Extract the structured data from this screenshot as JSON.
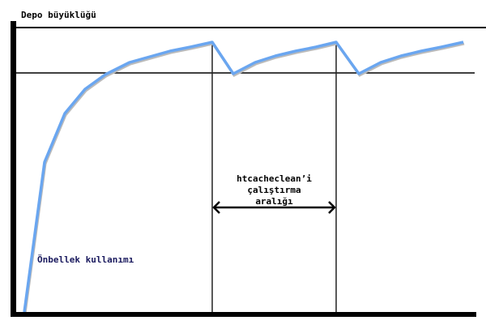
{
  "diagram": {
    "y_axis_label": "Depo büyüklüğü",
    "interval_label": [
      "htcacheclean’i",
      "çalıştırma",
      "aralığı"
    ],
    "curve_label": "Önbellek kullanımı",
    "colors": {
      "curve": "#6aa6f0",
      "axes": "#000000",
      "curve_label": "#1a1a5e"
    }
  }
}
